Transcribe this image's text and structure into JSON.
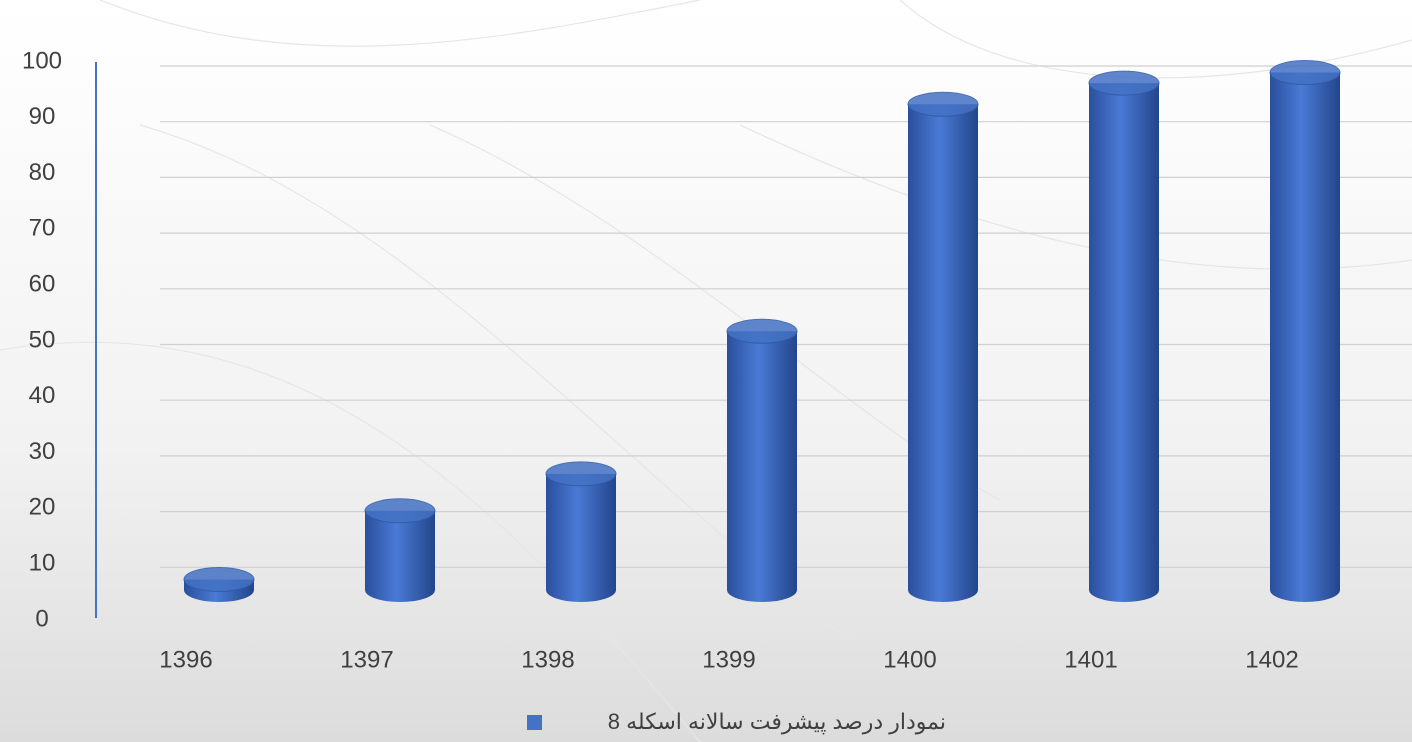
{
  "chart_data": {
    "type": "bar",
    "categories": [
      "1396",
      "1397",
      "1398",
      "1399",
      "1400",
      "1401",
      "1402"
    ],
    "series": [
      {
        "name": "نمودار درصد پیشرفت سالانه اسکله 8",
        "color": "#4472c4",
        "values": [
          2,
          15,
          22,
          49,
          92,
          96,
          98
        ]
      }
    ],
    "ylim": [
      0,
      100
    ],
    "yticks": [
      0,
      10,
      20,
      30,
      40,
      50,
      60,
      70,
      80,
      90,
      100
    ],
    "grid": true
  }
}
